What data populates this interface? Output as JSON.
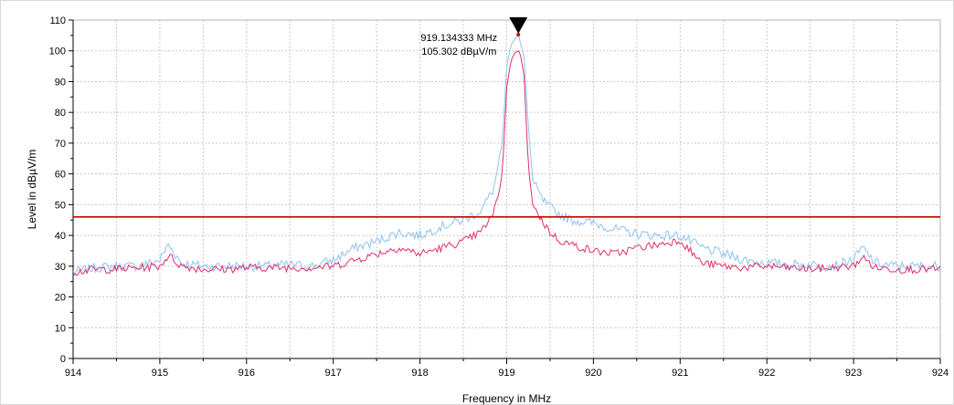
{
  "chart_data": {
    "type": "line",
    "title": "",
    "xlabel": "Frequency in MHz",
    "ylabel": "Level in dBµV/m",
    "xlim": [
      914,
      924
    ],
    "ylim": [
      0,
      110
    ],
    "x_ticks": [
      914,
      915,
      916,
      917,
      918,
      919,
      920,
      921,
      922,
      923,
      924
    ],
    "y_ticks": [
      0,
      10,
      20,
      30,
      40,
      50,
      60,
      70,
      80,
      90,
      100,
      110
    ],
    "grid": true,
    "colors": {
      "peak_trace": "#8fc1f0",
      "average_trace": "#e0306e",
      "limit_line": "#cc0000",
      "grid": "#c8c8c8"
    },
    "limit_line": {
      "value": 46
    },
    "marker": {
      "frequency": 919.134333,
      "level": 105.302,
      "label_frequency": "919.134333 MHz",
      "label_level": "105.302 dBµV/m"
    },
    "series": [
      {
        "role": "peak",
        "x": [
          914,
          914.25,
          914.5,
          914.75,
          915,
          915.1,
          915.25,
          915.5,
          915.75,
          916,
          916.25,
          916.5,
          916.75,
          917,
          917.25,
          917.5,
          917.75,
          918,
          918.25,
          918.5,
          918.7,
          918.85,
          918.95,
          919.0,
          919.05,
          919.1,
          919.134333,
          919.2,
          919.25,
          919.3,
          919.4,
          919.5,
          919.6,
          919.75,
          920,
          920.25,
          920.5,
          920.75,
          921,
          921.25,
          921.5,
          921.75,
          922,
          922.25,
          922.5,
          922.75,
          923,
          923.1,
          923.25,
          923.5,
          923.75,
          924
        ],
        "y": [
          28,
          29.5,
          30,
          30,
          32,
          37,
          31,
          30,
          30,
          30,
          30,
          30.5,
          30,
          32,
          36,
          38,
          41,
          40,
          43,
          45,
          48,
          55,
          70,
          95,
          102,
          104,
          105.302,
          98,
          75,
          58,
          52,
          49,
          47,
          45,
          44,
          42,
          40.5,
          40,
          40,
          36,
          34,
          32,
          31,
          30.5,
          30.5,
          30,
          32,
          36,
          31,
          30,
          30,
          30
        ]
      },
      {
        "role": "average",
        "x": [
          914,
          914.25,
          914.5,
          914.75,
          915,
          915.1,
          915.25,
          915.5,
          915.75,
          916,
          916.25,
          916.5,
          916.75,
          917,
          917.25,
          917.5,
          917.75,
          918,
          918.25,
          918.5,
          918.7,
          918.85,
          918.95,
          919.0,
          919.05,
          919.1,
          919.15,
          919.2,
          919.25,
          919.3,
          919.4,
          919.5,
          919.6,
          919.75,
          920,
          920.25,
          920.5,
          920.75,
          921,
          921.25,
          921.5,
          921.75,
          922,
          922.25,
          922.5,
          922.75,
          923,
          923.1,
          923.25,
          923.5,
          923.75,
          924
        ],
        "y": [
          28,
          29,
          29,
          29.5,
          30,
          33.5,
          30,
          29,
          29,
          29.5,
          29.5,
          29.5,
          29.5,
          30,
          32,
          34,
          36,
          34,
          36,
          38,
          41,
          47,
          60,
          88,
          97,
          99.5,
          100,
          92,
          62,
          50,
          45,
          41,
          38.5,
          37,
          35,
          34,
          36,
          37,
          38.5,
          31,
          30,
          29.5,
          30,
          29.5,
          29,
          29.5,
          30,
          33,
          29.5,
          29,
          29,
          29
        ]
      }
    ]
  }
}
